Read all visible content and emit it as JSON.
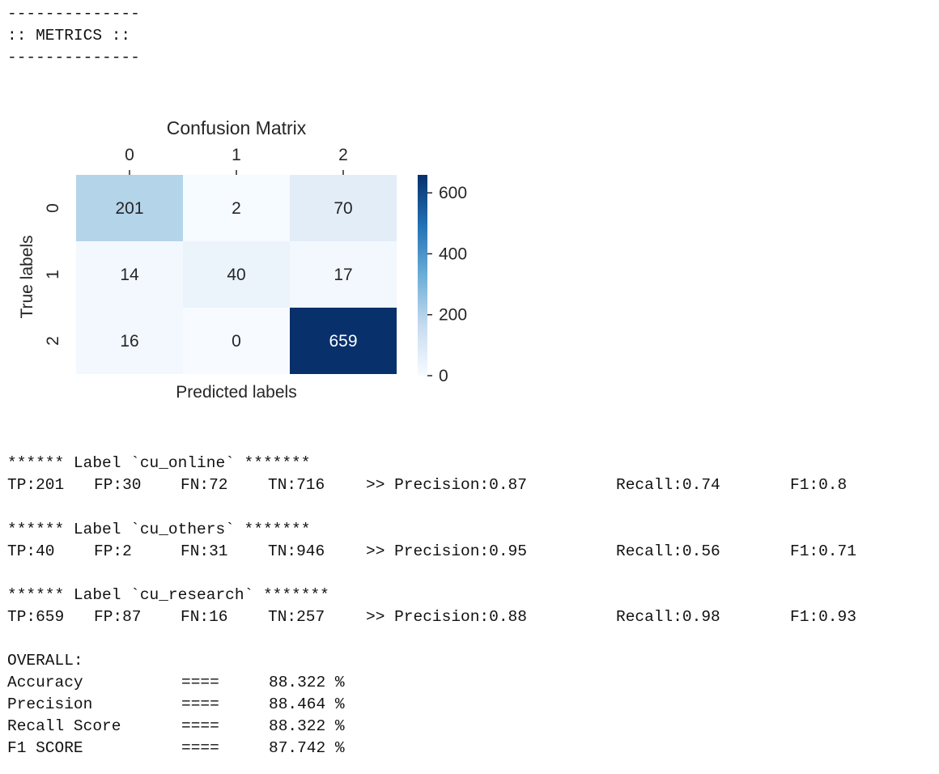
{
  "header": {
    "rule_top": "--------------",
    "title": ":: METRICS ::",
    "rule_bottom": "--------------"
  },
  "chart_data": {
    "type": "heatmap",
    "title": "Confusion Matrix",
    "xlabel": "Predicted labels",
    "ylabel": "True labels",
    "x_ticks": [
      "0",
      "1",
      "2"
    ],
    "y_ticks": [
      "0",
      "1",
      "2"
    ],
    "values": [
      [
        201,
        2,
        70
      ],
      [
        14,
        40,
        17
      ],
      [
        16,
        0,
        659
      ]
    ],
    "colormap": "Blues",
    "vmin": 0,
    "vmax": 659,
    "colorbar_ticks": [
      0,
      200,
      400,
      600
    ],
    "colors": {
      "low": "#f7fbff",
      "mid": "#6baed6",
      "high": "#08306b"
    }
  },
  "labels": [
    {
      "header": "****** Label `cu_online` *******",
      "tp": "TP:201",
      "fp": "FP:30",
      "fn": "FN:72",
      "tn": "TN:716",
      "precision": ">> Precision:0.87",
      "recall": "Recall:0.74",
      "f1": "F1:0.8"
    },
    {
      "header": "****** Label `cu_others` *******",
      "tp": "TP:40",
      "fp": "FP:2",
      "fn": "FN:31",
      "tn": "TN:946",
      "precision": ">> Precision:0.95",
      "recall": "Recall:0.56",
      "f1": "F1:0.71"
    },
    {
      "header": "****** Label `cu_research` *******",
      "tp": "TP:659",
      "fp": "FP:87",
      "fn": "FN:16",
      "tn": "TN:257",
      "precision": ">> Precision:0.88",
      "recall": "Recall:0.98",
      "f1": "F1:0.93"
    }
  ],
  "overall": {
    "title": "OVERALL:",
    "rows": [
      {
        "name": "Accuracy",
        "sep": "====",
        "value": "88.322 %"
      },
      {
        "name": "Precision",
        "sep": "====",
        "value": "88.464 %"
      },
      {
        "name": "Recall Score",
        "sep": "====",
        "value": "88.322 %"
      },
      {
        "name": "F1 SCORE",
        "sep": "====",
        "value": "87.742 %"
      }
    ]
  }
}
